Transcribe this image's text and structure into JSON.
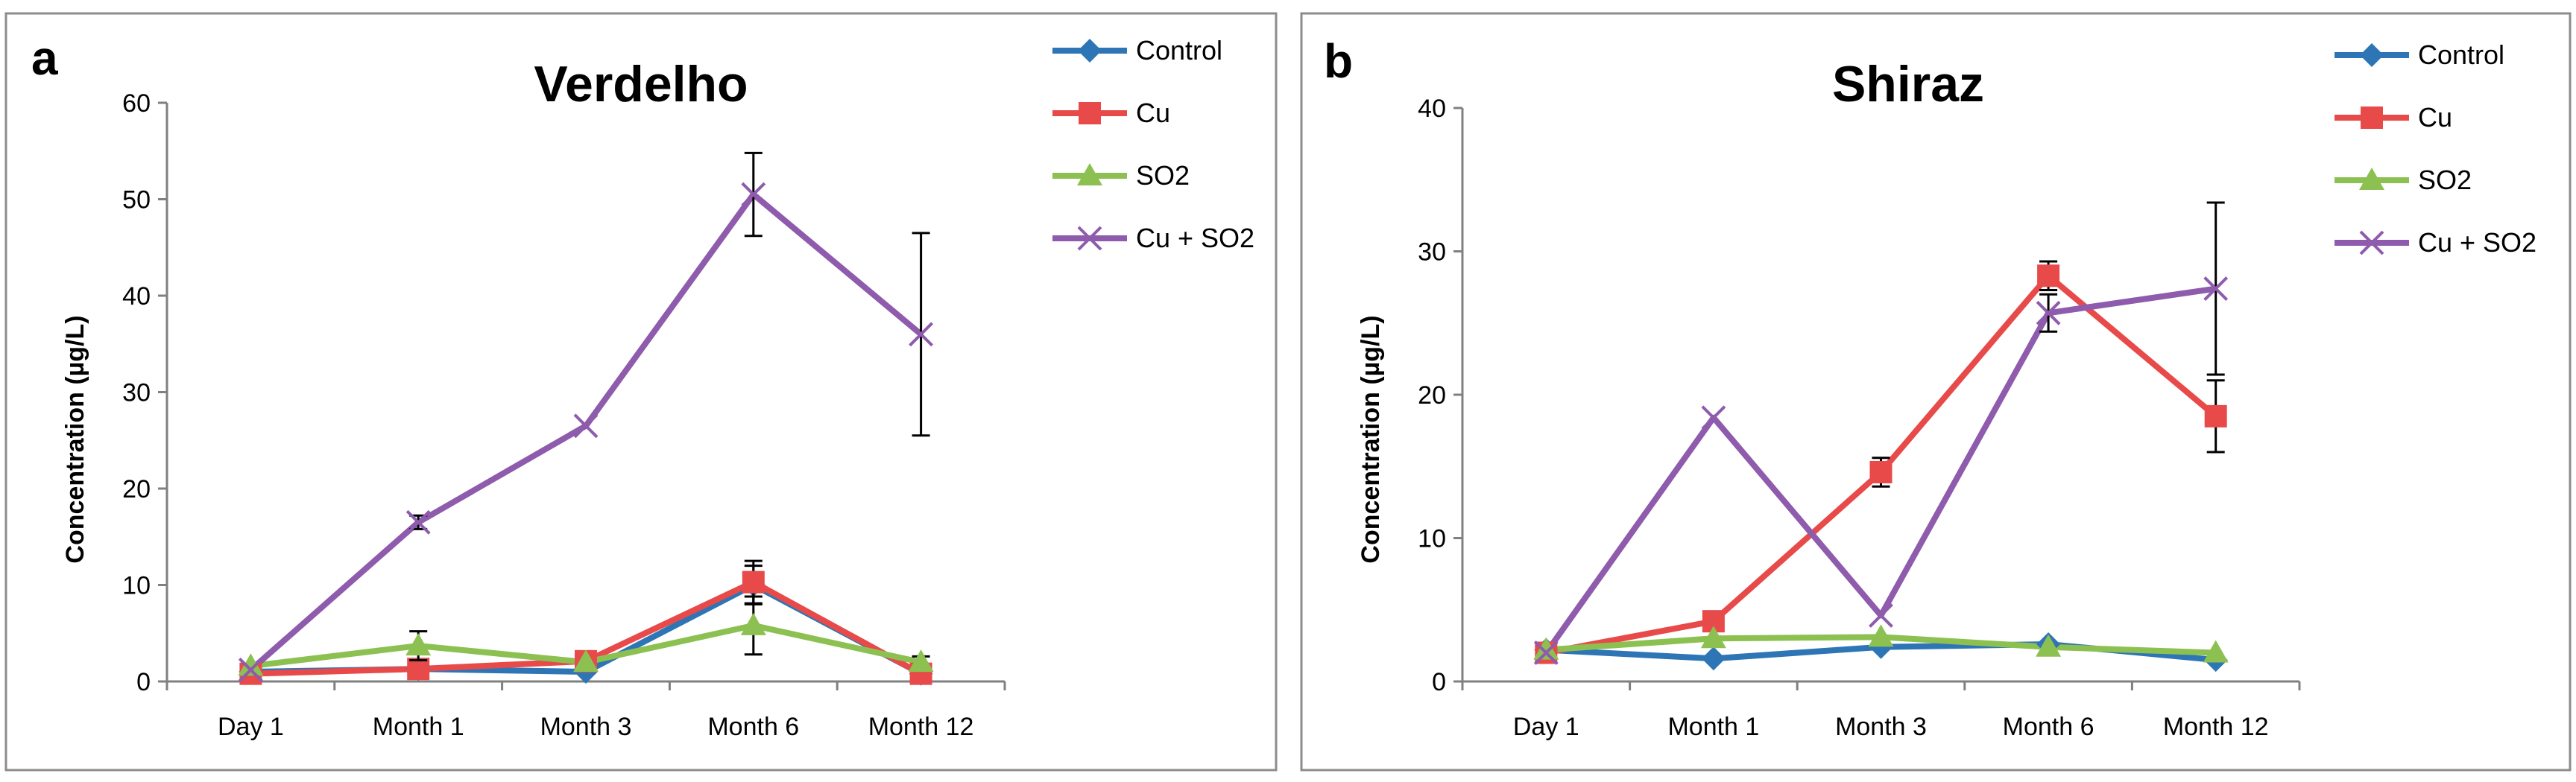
{
  "chart_data": [
    {
      "type": "line",
      "panel_label": "a",
      "title": "Verdelho",
      "xlabel": "",
      "ylabel": "Concentration (µg/L)",
      "categories": [
        "Day 1",
        "Month 1",
        "Month 3",
        "Month 6",
        "Month 12"
      ],
      "ylim": [
        0,
        60
      ],
      "yticks": [
        0,
        10,
        20,
        30,
        40,
        50,
        60
      ],
      "grid": false,
      "legend_position": "top-right",
      "series": [
        {
          "name": "Control",
          "color": "#2E75B6",
          "marker": "diamond",
          "values": [
            1.0,
            1.3,
            1.0,
            10.0,
            0.8
          ],
          "errors": [
            0.3,
            0.3,
            0.3,
            2.0,
            0.3
          ]
        },
        {
          "name": "Cu",
          "color": "#E84A4A",
          "marker": "square",
          "values": [
            0.8,
            1.3,
            2.1,
            10.3,
            0.8
          ],
          "errors": [
            0.3,
            0.4,
            0.5,
            2.2,
            0.4
          ]
        },
        {
          "name": "SO2",
          "color": "#8CC152",
          "marker": "triangle",
          "values": [
            1.6,
            3.7,
            2.0,
            5.8,
            2.0
          ],
          "errors": [
            0.3,
            1.5,
            0.5,
            3.0,
            0.6
          ]
        },
        {
          "name": "Cu + SO2",
          "color": "#8E5BAD",
          "marker": "x",
          "values": [
            1.2,
            16.5,
            26.5,
            50.5,
            36.0
          ],
          "errors": [
            0.3,
            0.7,
            0.5,
            4.3,
            10.5
          ]
        }
      ]
    },
    {
      "type": "line",
      "panel_label": "b",
      "title": "Shiraz",
      "xlabel": "",
      "ylabel": "Concentration (µg/L)",
      "categories": [
        "Day 1",
        "Month 1",
        "Month 3",
        "Month 6",
        "Month 12"
      ],
      "ylim": [
        0,
        40
      ],
      "yticks": [
        0,
        10,
        20,
        30,
        40
      ],
      "grid": false,
      "legend_position": "top-right",
      "series": [
        {
          "name": "Control",
          "color": "#2E75B6",
          "marker": "diamond",
          "values": [
            2.2,
            1.6,
            2.4,
            2.6,
            1.5
          ],
          "errors": [
            0.2,
            0.2,
            0.2,
            0.2,
            0.2
          ]
        },
        {
          "name": "Cu",
          "color": "#E84A4A",
          "marker": "square",
          "values": [
            2.0,
            4.2,
            14.6,
            28.3,
            18.5
          ],
          "errors": [
            0.2,
            0.3,
            1.0,
            1.0,
            2.5
          ]
        },
        {
          "name": "SO2",
          "color": "#8CC152",
          "marker": "triangle",
          "values": [
            2.2,
            3.0,
            3.1,
            2.4,
            2.0
          ],
          "errors": [
            0.2,
            0.2,
            0.2,
            0.2,
            0.2
          ]
        },
        {
          "name": "Cu + SO2",
          "color": "#8E5BAD",
          "marker": "x",
          "values": [
            2.0,
            18.4,
            4.6,
            25.7,
            27.4
          ],
          "errors": [
            0.2,
            0.3,
            0.4,
            1.3,
            6.0
          ]
        }
      ]
    }
  ]
}
